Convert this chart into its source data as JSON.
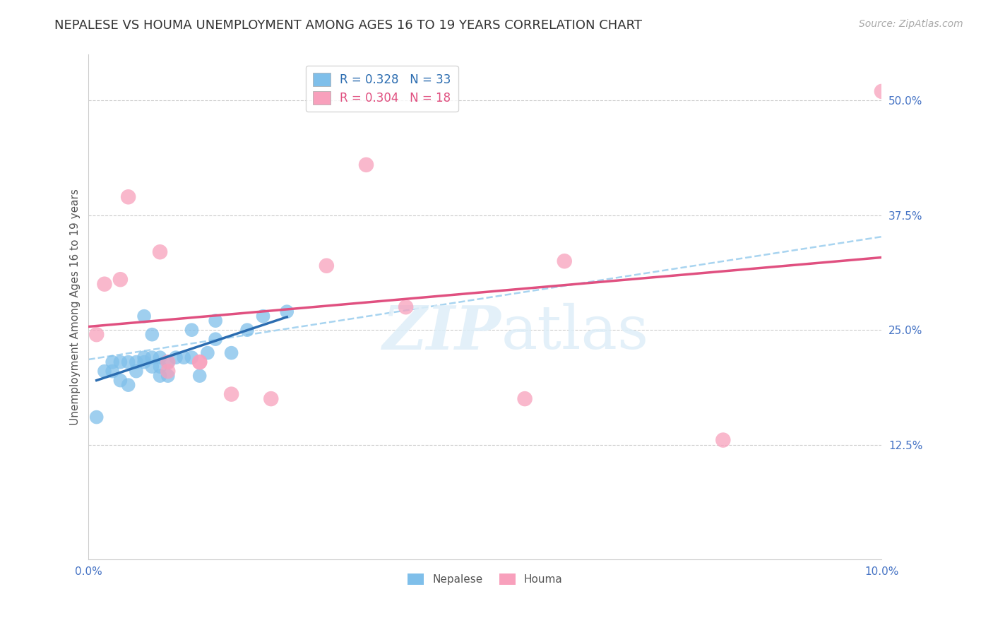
{
  "title": "NEPALESE VS HOUMA UNEMPLOYMENT AMONG AGES 16 TO 19 YEARS CORRELATION CHART",
  "source": "Source: ZipAtlas.com",
  "ylabel": "Unemployment Among Ages 16 to 19 years",
  "xlim": [
    0.0,
    0.1
  ],
  "ylim": [
    0.0,
    0.55
  ],
  "yticks": [
    0.0,
    0.125,
    0.25,
    0.375,
    0.5
  ],
  "ytick_labels": [
    "",
    "12.5%",
    "25.0%",
    "37.5%",
    "50.0%"
  ],
  "xticks": [
    0.0,
    0.02,
    0.04,
    0.06,
    0.08,
    0.1
  ],
  "xtick_labels": [
    "0.0%",
    "",
    "",
    "",
    "",
    "10.0%"
  ],
  "nepalese_R": 0.328,
  "nepalese_N": 33,
  "houma_R": 0.304,
  "houma_N": 18,
  "nepalese_color": "#7fbfea",
  "houma_color": "#f8a0bc",
  "nepalese_line_color": "#2b6cb0",
  "houma_line_color": "#e05080",
  "dashed_line_color": "#a8d4f0",
  "watermark_color": "#deeef8",
  "nepalese_x": [
    0.001,
    0.002,
    0.003,
    0.003,
    0.004,
    0.004,
    0.005,
    0.005,
    0.006,
    0.006,
    0.007,
    0.007,
    0.007,
    0.008,
    0.008,
    0.008,
    0.009,
    0.009,
    0.009,
    0.01,
    0.01,
    0.011,
    0.012,
    0.013,
    0.013,
    0.014,
    0.015,
    0.016,
    0.016,
    0.018,
    0.02,
    0.022,
    0.025
  ],
  "nepalese_y": [
    0.155,
    0.205,
    0.205,
    0.215,
    0.195,
    0.215,
    0.19,
    0.215,
    0.205,
    0.215,
    0.215,
    0.22,
    0.265,
    0.21,
    0.22,
    0.245,
    0.2,
    0.21,
    0.22,
    0.2,
    0.215,
    0.22,
    0.22,
    0.22,
    0.25,
    0.2,
    0.225,
    0.24,
    0.26,
    0.225,
    0.25,
    0.265,
    0.27
  ],
  "houma_x": [
    0.001,
    0.002,
    0.004,
    0.005,
    0.009,
    0.01,
    0.01,
    0.014,
    0.014,
    0.018,
    0.023,
    0.03,
    0.035,
    0.04,
    0.055,
    0.06,
    0.08,
    0.1
  ],
  "houma_y": [
    0.245,
    0.3,
    0.305,
    0.395,
    0.335,
    0.205,
    0.215,
    0.215,
    0.215,
    0.18,
    0.175,
    0.32,
    0.43,
    0.275,
    0.175,
    0.325,
    0.13,
    0.51
  ],
  "background_color": "#ffffff",
  "title_fontsize": 13,
  "axis_label_fontsize": 11,
  "tick_fontsize": 11,
  "legend_fontsize": 12,
  "source_fontsize": 10
}
